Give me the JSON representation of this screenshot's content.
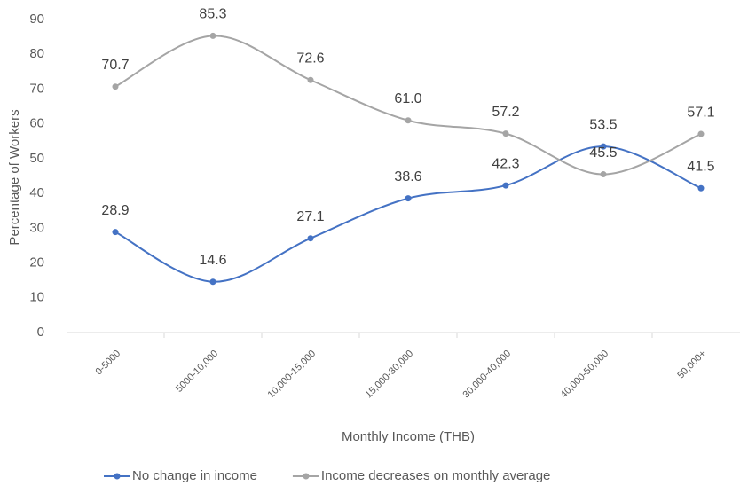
{
  "chart_data": {
    "type": "line",
    "x_label": "Monthly Income (THB)",
    "y_label": "Percentage of Workers",
    "categories": [
      "0-5000",
      "5000-10,000",
      "10,000-15,000",
      "15,000-30,000",
      "30,000-40,000",
      "40,000-50,000",
      "50,000+"
    ],
    "series": [
      {
        "name": "No change in income",
        "color": "#4472c4",
        "values": [
          28.9,
          14.6,
          27.1,
          38.6,
          42.3,
          53.5,
          41.5
        ],
        "value_labels": [
          "28.9",
          "14.6",
          "27.1",
          "38.6",
          "42.3",
          "53.5",
          "41.5"
        ]
      },
      {
        "name": "Income decreases on monthly average",
        "color": "#a5a5a5",
        "values": [
          70.7,
          85.3,
          72.6,
          61.0,
          57.2,
          45.5,
          57.1
        ],
        "value_labels": [
          "70.7",
          "85.3",
          "72.6",
          "61.0",
          "57.2",
          "45.5",
          "57.1"
        ]
      }
    ],
    "ylim": [
      0,
      90
    ],
    "yticks": [
      0,
      10,
      20,
      30,
      40,
      50,
      60,
      70,
      80,
      90
    ],
    "grid": false,
    "smooth": true,
    "legend": "bottom"
  }
}
